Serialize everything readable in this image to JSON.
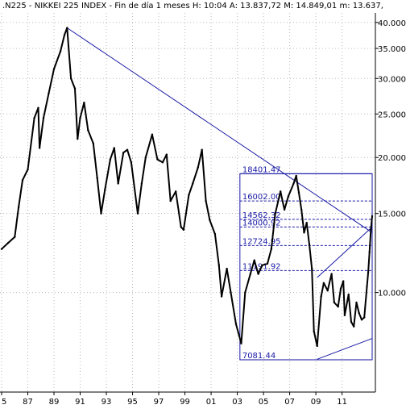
{
  "header": {
    "title": ".N225 - NIKKEI 225 INDEX - Fin de día 1 meses  H: 10:04  A: 13.837,72  M: 14.849,01  m: 13.637,"
  },
  "chart_data": {
    "type": "line",
    "title": ".N225 - NIKKEI 225 INDEX - Fin de día 1 meses",
    "xlabel": "",
    "ylabel": "",
    "scale": "log",
    "grid": true,
    "ylim": [
      6000,
      42000
    ],
    "xlim": [
      1985,
      2013.3
    ],
    "x_ticks": [
      {
        "label": "5",
        "x": 1985
      },
      {
        "label": "87",
        "x": 1987
      },
      {
        "label": "89",
        "x": 1989
      },
      {
        "label": "91",
        "x": 1991
      },
      {
        "label": "93",
        "x": 1993
      },
      {
        "label": "95",
        "x": 1995
      },
      {
        "label": "97",
        "x": 1997
      },
      {
        "label": "99",
        "x": 1999
      },
      {
        "label": "01",
        "x": 2001
      },
      {
        "label": "03",
        "x": 2003
      },
      {
        "label": "05",
        "x": 2005
      },
      {
        "label": "07",
        "x": 2007
      },
      {
        "label": "09",
        "x": 2009
      },
      {
        "label": "11",
        "x": 2011
      }
    ],
    "y_ticks": [
      {
        "label": "40.000",
        "y": 40000
      },
      {
        "label": "35.000",
        "y": 35000
      },
      {
        "label": "30.000",
        "y": 30000
      },
      {
        "label": "25.000",
        "y": 25000
      },
      {
        "label": "20.000",
        "y": 20000
      },
      {
        "label": "15.000",
        "y": 15000
      },
      {
        "label": "10.000",
        "y": 10000
      }
    ],
    "series": [
      {
        "values": [
          [
            1985.0,
            12500
          ],
          [
            1985.5,
            12900
          ],
          [
            1986.0,
            13300
          ],
          [
            1986.3,
            15500
          ],
          [
            1986.6,
            17800
          ],
          [
            1987.0,
            18800
          ],
          [
            1987.5,
            24500
          ],
          [
            1987.8,
            25800
          ],
          [
            1987.9,
            21000
          ],
          [
            1988.2,
            24500
          ],
          [
            1988.6,
            27800
          ],
          [
            1989.0,
            31500
          ],
          [
            1989.5,
            34500
          ],
          [
            1989.8,
            37500
          ],
          [
            1990.0,
            38900
          ],
          [
            1990.3,
            30000
          ],
          [
            1990.6,
            28500
          ],
          [
            1990.8,
            22000
          ],
          [
            1991.0,
            24500
          ],
          [
            1991.3,
            26500
          ],
          [
            1991.6,
            23000
          ],
          [
            1992.0,
            21500
          ],
          [
            1992.3,
            18000
          ],
          [
            1992.6,
            15000
          ],
          [
            1992.9,
            17000
          ],
          [
            1993.3,
            19800
          ],
          [
            1993.6,
            21000
          ],
          [
            1993.9,
            17500
          ],
          [
            1994.3,
            20500
          ],
          [
            1994.6,
            20800
          ],
          [
            1994.9,
            19500
          ],
          [
            1995.4,
            15000
          ],
          [
            1995.7,
            17500
          ],
          [
            1996.0,
            20000
          ],
          [
            1996.5,
            22500
          ],
          [
            1996.9,
            19800
          ],
          [
            1997.3,
            19500
          ],
          [
            1997.6,
            20300
          ],
          [
            1997.9,
            16000
          ],
          [
            1998.3,
            16800
          ],
          [
            1998.7,
            14000
          ],
          [
            1998.9,
            13800
          ],
          [
            1999.3,
            16500
          ],
          [
            1999.6,
            17500
          ],
          [
            2000.0,
            19000
          ],
          [
            2000.3,
            20800
          ],
          [
            2000.6,
            16000
          ],
          [
            2000.9,
            14500
          ],
          [
            2001.3,
            13500
          ],
          [
            2001.6,
            11500
          ],
          [
            2001.8,
            9800
          ],
          [
            2002.2,
            11300
          ],
          [
            2002.5,
            10000
          ],
          [
            2002.9,
            8500
          ],
          [
            2003.3,
            7700
          ],
          [
            2003.6,
            10000
          ],
          [
            2004.0,
            11000
          ],
          [
            2004.3,
            11800
          ],
          [
            2004.6,
            11000
          ],
          [
            2004.9,
            11500
          ],
          [
            2005.3,
            11600
          ],
          [
            2005.6,
            12500
          ],
          [
            2005.9,
            15000
          ],
          [
            2006.3,
            16800
          ],
          [
            2006.6,
            15300
          ],
          [
            2006.9,
            16400
          ],
          [
            2007.3,
            17500
          ],
          [
            2007.5,
            18200
          ],
          [
            2007.7,
            16700
          ],
          [
            2007.9,
            15300
          ],
          [
            2008.1,
            13600
          ],
          [
            2008.3,
            14300
          ],
          [
            2008.5,
            12800
          ],
          [
            2008.7,
            11300
          ],
          [
            2008.85,
            8200
          ],
          [
            2009.1,
            7600
          ],
          [
            2009.4,
            9800
          ],
          [
            2009.6,
            10500
          ],
          [
            2009.9,
            10100
          ],
          [
            2010.2,
            11000
          ],
          [
            2010.4,
            9500
          ],
          [
            2010.7,
            9300
          ],
          [
            2010.9,
            10200
          ],
          [
            2011.1,
            10600
          ],
          [
            2011.2,
            8900
          ],
          [
            2011.5,
            9900
          ],
          [
            2011.7,
            8600
          ],
          [
            2011.9,
            8400
          ],
          [
            2012.1,
            9500
          ],
          [
            2012.3,
            9000
          ],
          [
            2012.5,
            8700
          ],
          [
            2012.7,
            8800
          ],
          [
            2012.9,
            10300
          ],
          [
            2013.0,
            11100
          ],
          [
            2013.1,
            12300
          ],
          [
            2013.2,
            13800
          ],
          [
            2013.3,
            14800
          ]
        ]
      }
    ],
    "trendlines": [
      {
        "x": [
          1990.0,
          2013.3
        ],
        "y": [
          38900,
          13600
        ]
      },
      {
        "x": [
          2009.1,
          2013.3
        ],
        "y": [
          7100,
          7900
        ]
      },
      {
        "x": [
          2009.1,
          2013.3
        ],
        "y": [
          10800,
          14000
        ]
      }
    ],
    "retracement_levels": [
      {
        "label": "18401.47",
        "value": 18401.47
      },
      {
        "label": "16002.00",
        "value": 16002.0
      },
      {
        "label": "14562.32",
        "value": 14562.32
      },
      {
        "label": "14000.92",
        "value": 14000.92
      },
      {
        "label": "12724.95",
        "value": 12724.95
      },
      {
        "label": "11191.92",
        "value": 11191.92
      },
      {
        "label": "7081.44",
        "value": 7081.44
      }
    ],
    "retracement_range": {
      "x": [
        2003.2,
        2013.3
      ]
    },
    "colors": {
      "price": "#000000",
      "lines": "#1a1aa6",
      "grid": "#b8b8b8",
      "axis": "#000000"
    }
  }
}
